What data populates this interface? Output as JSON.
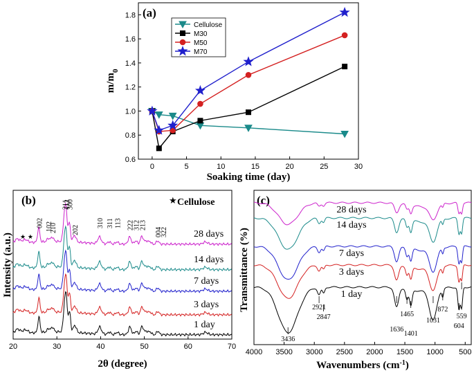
{
  "chart_data": [
    {
      "panel_label": "(a)",
      "type": "line",
      "xlabel": "Soaking time (day)",
      "ylabel_main": "m/m",
      "ylabel_sub": "0",
      "xlim": [
        -2,
        30
      ],
      "ylim": [
        0.6,
        1.9
      ],
      "xticks": [
        0,
        5,
        10,
        15,
        20,
        25,
        30
      ],
      "yticks": [
        0.6,
        0.8,
        1.0,
        1.2,
        1.4,
        1.6,
        1.8
      ],
      "series": [
        {
          "name": "Cellulose",
          "color": "#1a8a8a",
          "marker": "triangle-down",
          "x": [
            0,
            1,
            3,
            7,
            14,
            28
          ],
          "y": [
            1.0,
            0.97,
            0.96,
            0.88,
            0.86,
            0.81
          ]
        },
        {
          "name": "M30",
          "color": "#000000",
          "marker": "square",
          "x": [
            0,
            1,
            3,
            7,
            14,
            28
          ],
          "y": [
            1.0,
            0.69,
            0.83,
            0.92,
            0.99,
            1.37
          ]
        },
        {
          "name": "M50",
          "color": "#d42020",
          "marker": "circle",
          "x": [
            0,
            1,
            3,
            7,
            14,
            28
          ],
          "y": [
            1.0,
            0.83,
            0.84,
            1.06,
            1.3,
            1.63
          ]
        },
        {
          "name": "M70",
          "color": "#2020cc",
          "marker": "star",
          "x": [
            0,
            1,
            3,
            7,
            14,
            28
          ],
          "y": [
            1.0,
            0.84,
            0.88,
            1.17,
            1.41,
            1.82
          ]
        }
      ]
    },
    {
      "panel_label": "(b)",
      "type": "line",
      "xlabel": "2θ (degree)",
      "ylabel": "Intensity (a.u.)",
      "xlim": [
        20,
        70
      ],
      "xticks": [
        20,
        30,
        40,
        50,
        60,
        70
      ],
      "legend_marker": "★",
      "legend_label": "Cellulose",
      "cellulose_marks": "★ ★",
      "peak_labels": [
        "002",
        "102",
        "210",
        "211",
        "300",
        "112",
        "202",
        "310",
        "311",
        "113",
        "222",
        "312",
        "213",
        "004",
        "322"
      ],
      "peak_positions": [
        25.9,
        28.1,
        29.0,
        31.8,
        32.9,
        32.2,
        34.1,
        39.8,
        42.0,
        43.8,
        46.7,
        48.1,
        49.5,
        53.1,
        54.3
      ],
      "series": [
        {
          "name": "1 day",
          "color": "#000000"
        },
        {
          "name": "3 days",
          "color": "#d42020"
        },
        {
          "name": "7 days",
          "color": "#2020cc"
        },
        {
          "name": "14 days",
          "color": "#1a8a8a"
        },
        {
          "name": "28 days",
          "color": "#cc22cc"
        }
      ]
    },
    {
      "panel_label": "(c)",
      "type": "line",
      "xlabel_main": "Wavenumbers (cm",
      "xlabel_sup": "-1",
      "xlabel_end": ")",
      "ylabel": "Transmittance (%)",
      "xlim": [
        4000,
        400
      ],
      "xticks": [
        4000,
        3500,
        3000,
        2500,
        2000,
        1500,
        1000,
        500
      ],
      "band_labels": [
        "3436",
        "2921",
        "2847",
        "1636",
        "1465",
        "1401",
        "1031",
        "872",
        "604",
        "559"
      ],
      "band_positions": [
        3436,
        2921,
        2847,
        1636,
        1465,
        1401,
        1031,
        872,
        604,
        559
      ],
      "series": [
        {
          "name": "1 day",
          "color": "#000000"
        },
        {
          "name": "3 days",
          "color": "#d42020"
        },
        {
          "name": "7 days",
          "color": "#2020cc"
        },
        {
          "name": "14 days",
          "color": "#1a8a8a"
        },
        {
          "name": "28 days",
          "color": "#cc22cc"
        }
      ]
    }
  ]
}
